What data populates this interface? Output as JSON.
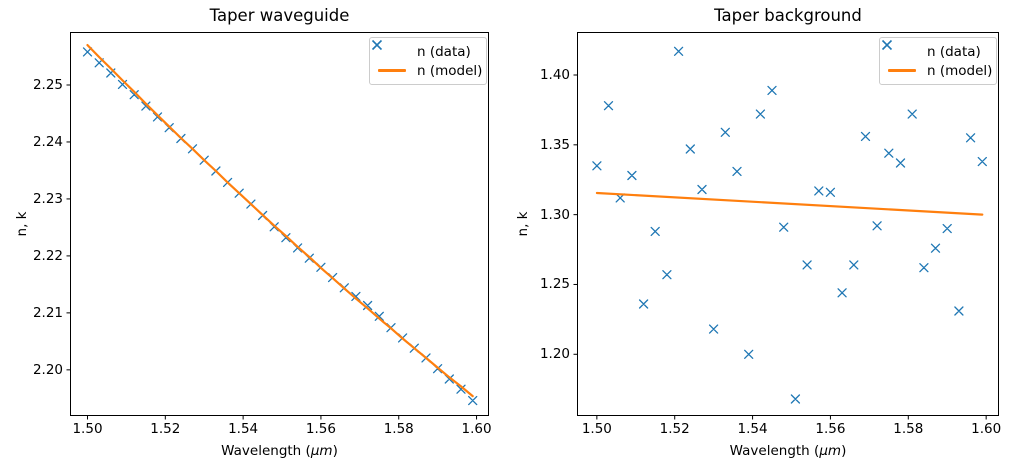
{
  "figure": {
    "background": "#ffffff",
    "colors": {
      "data_marker": "#1f77b4",
      "model_line": "#ff7f0e",
      "axis": "#000000",
      "legend_border": "#cccccc"
    }
  },
  "chart_data": [
    {
      "type": "scatter",
      "title": "Taper waveguide",
      "xlabel": "Wavelength (μm)",
      "xlabel_parts": {
        "prefix": "Wavelength (",
        "italic": "μm",
        "suffix": ")"
      },
      "ylabel": "n, k",
      "grid": false,
      "legend_position": "upper right",
      "xlim": [
        1.4955,
        1.6032
      ],
      "ylim": [
        2.1919,
        2.2593
      ],
      "xticks": [
        1.5,
        1.52,
        1.54,
        1.56,
        1.58,
        1.6
      ],
      "xtick_labels": [
        "1.50",
        "1.52",
        "1.54",
        "1.56",
        "1.58",
        "1.60"
      ],
      "yticks": [
        2.2,
        2.21,
        2.22,
        2.23,
        2.24,
        2.25
      ],
      "ytick_labels": [
        "2.20",
        "2.21",
        "2.22",
        "2.23",
        "2.24",
        "2.25"
      ],
      "series": [
        {
          "name": "n (data)",
          "style": "scatter-x",
          "marker": "x",
          "color": "#1f77b4",
          "x": [
            1.5,
            1.503,
            1.506,
            1.509,
            1.512,
            1.515,
            1.518,
            1.521,
            1.524,
            1.527,
            1.53,
            1.533,
            1.536,
            1.539,
            1.542,
            1.545,
            1.548,
            1.551,
            1.554,
            1.557,
            1.56,
            1.563,
            1.566,
            1.569,
            1.572,
            1.575,
            1.578,
            1.581,
            1.584,
            1.587,
            1.59,
            1.593,
            1.596,
            1.599
          ],
          "values": [
            2.2558,
            2.2539,
            2.2521,
            2.2501,
            2.2483,
            2.2463,
            2.2444,
            2.2425,
            2.2406,
            2.2388,
            2.2368,
            2.2349,
            2.2329,
            2.231,
            2.2291,
            2.2271,
            2.2251,
            2.2232,
            2.2214,
            2.2196,
            2.218,
            2.2162,
            2.2144,
            2.2129,
            2.2113,
            2.2094,
            2.2074,
            2.2056,
            2.2038,
            2.2021,
            2.2002,
            2.1984,
            2.1966,
            2.1946
          ]
        },
        {
          "name": "n (model)",
          "style": "line",
          "color": "#ff7f0e",
          "x": [
            1.5,
            1.503,
            1.506,
            1.509,
            1.512,
            1.515,
            1.518,
            1.521,
            1.524,
            1.527,
            1.53,
            1.533,
            1.536,
            1.539,
            1.542,
            1.545,
            1.548,
            1.551,
            1.554,
            1.557,
            1.56,
            1.563,
            1.566,
            1.569,
            1.572,
            1.575,
            1.578,
            1.581,
            1.584,
            1.587,
            1.59,
            1.593,
            1.596,
            1.599
          ],
          "values": [
            2.257,
            2.2549,
            2.2529,
            2.2508,
            2.2488,
            2.2467,
            2.2447,
            2.2427,
            2.2407,
            2.2388,
            2.2368,
            2.2349,
            2.2329,
            2.231,
            2.2291,
            2.2272,
            2.2253,
            2.2235,
            2.2216,
            2.2198,
            2.2179,
            2.2161,
            2.2143,
            2.2125,
            2.2108,
            2.209,
            2.2073,
            2.2055,
            2.2038,
            2.2021,
            2.2004,
            2.1987,
            2.1971,
            2.1954
          ]
        }
      ]
    },
    {
      "type": "scatter",
      "title": "Taper background",
      "xlabel": "Wavelength (μm)",
      "xlabel_parts": {
        "prefix": "Wavelength (",
        "italic": "μm",
        "suffix": ")"
      },
      "ylabel": "n, k",
      "grid": false,
      "legend_position": "upper right",
      "xlim": [
        1.4949,
        1.6033
      ],
      "ylim": [
        1.1558,
        1.4308
      ],
      "xticks": [
        1.5,
        1.52,
        1.54,
        1.56,
        1.58,
        1.6
      ],
      "xtick_labels": [
        "1.50",
        "1.52",
        "1.54",
        "1.56",
        "1.58",
        "1.60"
      ],
      "yticks": [
        1.2,
        1.25,
        1.3,
        1.35,
        1.4
      ],
      "ytick_labels": [
        "1.20",
        "1.25",
        "1.30",
        "1.35",
        "1.40"
      ],
      "series": [
        {
          "name": "n (data)",
          "style": "scatter-x",
          "marker": "x",
          "color": "#1f77b4",
          "x": [
            1.5,
            1.503,
            1.506,
            1.509,
            1.512,
            1.515,
            1.518,
            1.521,
            1.524,
            1.527,
            1.53,
            1.533,
            1.536,
            1.539,
            1.542,
            1.545,
            1.548,
            1.551,
            1.554,
            1.557,
            1.56,
            1.563,
            1.566,
            1.569,
            1.572,
            1.575,
            1.578,
            1.581,
            1.584,
            1.587,
            1.59,
            1.593,
            1.596,
            1.599
          ],
          "values": [
            1.335,
            1.378,
            1.312,
            1.328,
            1.236,
            1.288,
            1.257,
            1.417,
            1.347,
            1.318,
            1.218,
            1.359,
            1.331,
            1.2,
            1.372,
            1.389,
            1.291,
            1.168,
            1.264,
            1.317,
            1.316,
            1.244,
            1.264,
            1.356,
            1.292,
            1.344,
            1.337,
            1.372,
            1.262,
            1.276,
            1.29,
            1.231,
            1.355,
            1.338
          ]
        },
        {
          "name": "n (model)",
          "style": "line",
          "color": "#ff7f0e",
          "x": [
            1.5,
            1.599
          ],
          "values": [
            1.3155,
            1.3
          ]
        }
      ]
    }
  ]
}
